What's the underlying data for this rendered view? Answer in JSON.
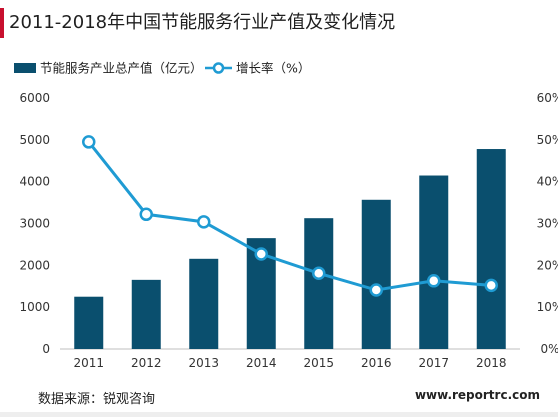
{
  "page": {
    "title": "2011-2018年中国节能服务行业产值及变化情况",
    "source": "数据来源：锐观咨询",
    "website": "www.reportrc.com"
  },
  "chart_data": {
    "type": "bar",
    "title": "2011-2018年中国节能服务行业产值及变化情况",
    "categories": [
      "2011",
      "2012",
      "2013",
      "2014",
      "2015",
      "2016",
      "2017",
      "2018"
    ],
    "series": [
      {
        "name": "节能服务产业总产值（亿元）",
        "type": "bar",
        "axis": "left",
        "color": "#0a4f6e",
        "values": [
          1250,
          1653,
          2156,
          2650,
          3127,
          3567,
          4147,
          4780
        ]
      },
      {
        "name": "增长率（%）",
        "type": "line",
        "axis": "right",
        "color": "#1f9bd3",
        "values": [
          49.5,
          32.2,
          30.4,
          22.7,
          18.1,
          14.1,
          16.3,
          15.2
        ]
      }
    ],
    "y_left": {
      "min": 0,
      "max": 6000,
      "ticks": [
        "0",
        "1000",
        "2000",
        "3000",
        "4000",
        "5000",
        "6000"
      ]
    },
    "y_right": {
      "min": 0,
      "max": 60,
      "ticks": [
        "0%",
        "10%",
        "20%",
        "30%",
        "40%",
        "50%",
        "60%"
      ]
    },
    "grid": false,
    "legend_position": "top-left"
  }
}
